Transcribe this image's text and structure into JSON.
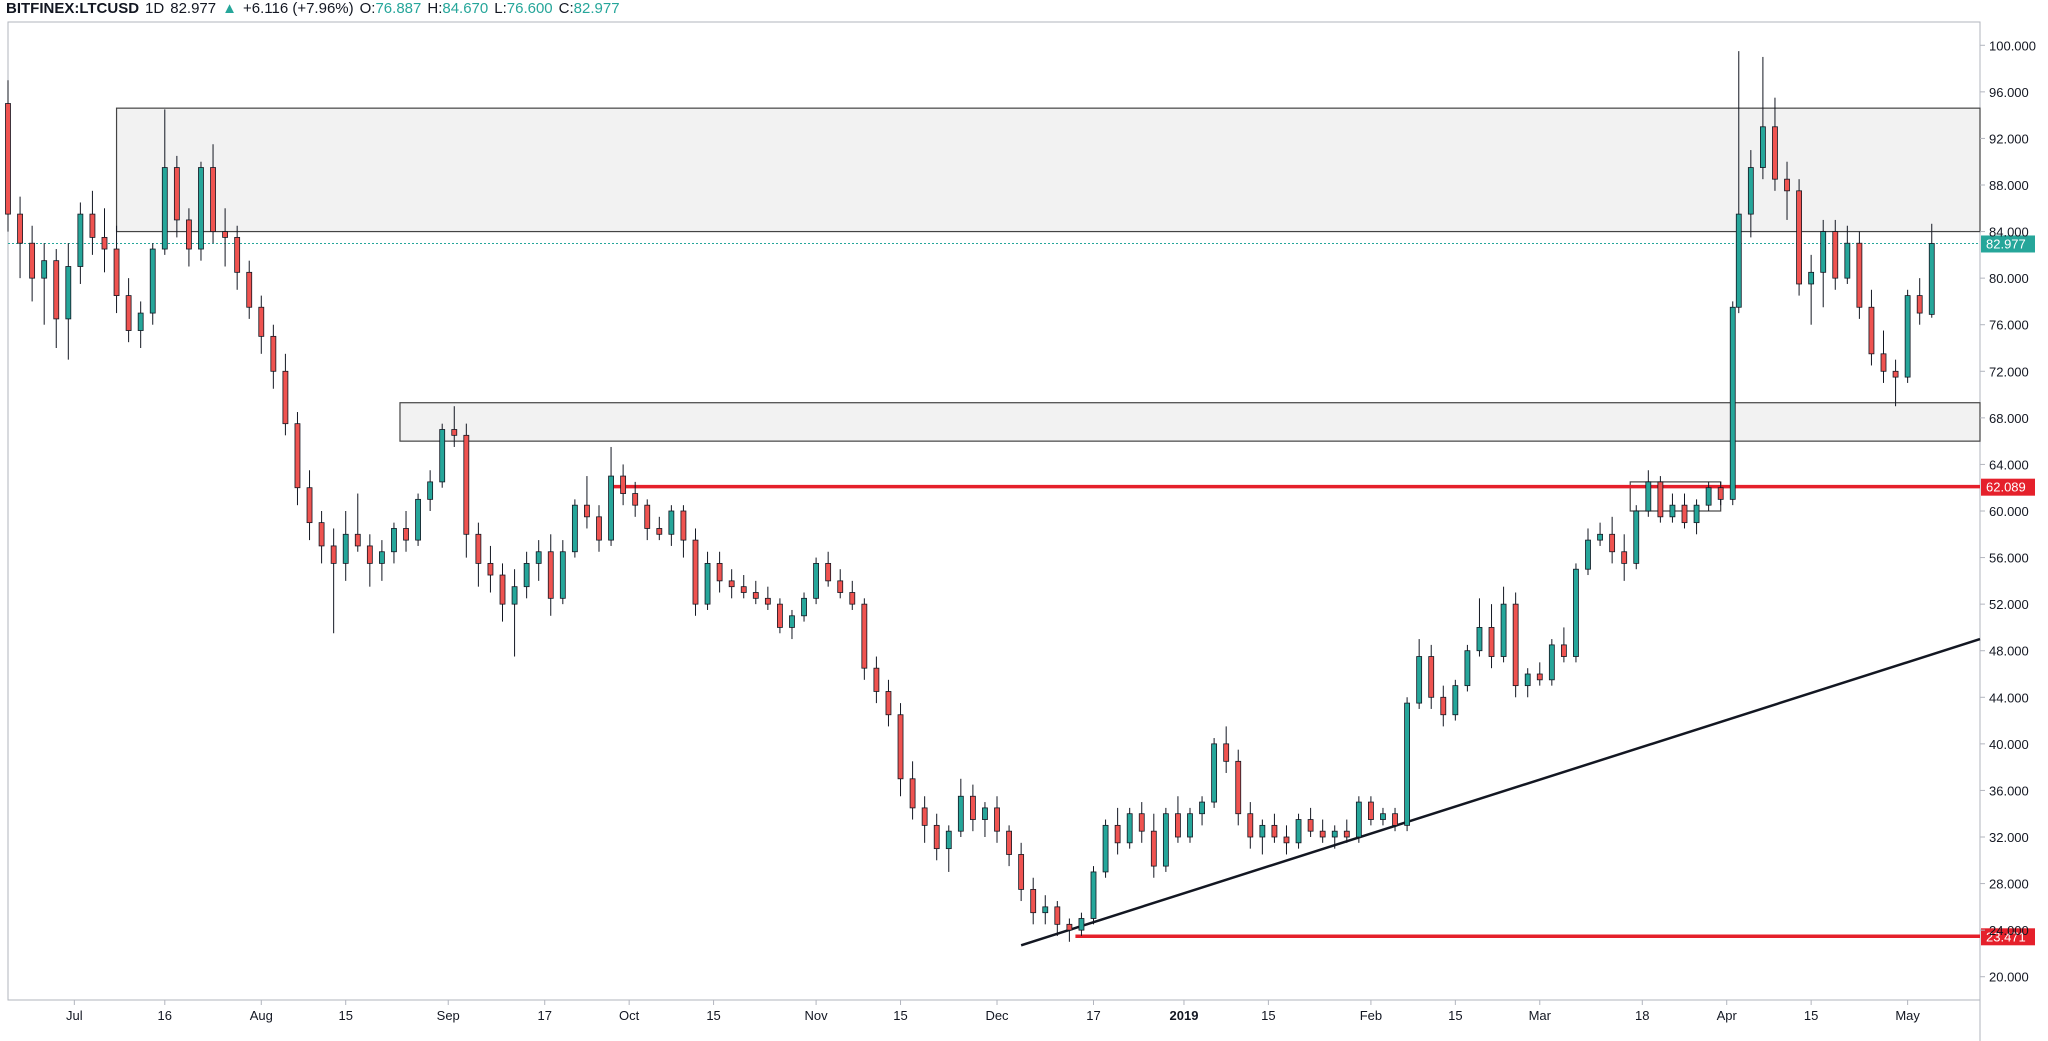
{
  "header": {
    "symbol": "BITFINEX:LTCUSD",
    "interval": "1D",
    "last": "82.977",
    "change_arrow": "▲",
    "change": "+6.116 (+7.96%)",
    "o_label": "O:",
    "o_value": "76.887",
    "h_label": "H:",
    "h_value": "84.670",
    "l_label": "L:",
    "l_value": "76.600",
    "c_label": "C:",
    "c_value": "82.977"
  },
  "colors": {
    "up": "#26a69a",
    "down": "#ef5350",
    "wick": "#131722",
    "resistance": "#e5202b",
    "trendline": "#131722",
    "zone_fill": "#f2f2f2",
    "last_price": "#26a69a"
  },
  "chart_data": {
    "type": "candlestick",
    "ylim": [
      18,
      102
    ],
    "y_ticks": [
      "20.000",
      "24.000",
      "28.000",
      "32.000",
      "36.000",
      "40.000",
      "44.000",
      "48.000",
      "52.000",
      "56.000",
      "60.000",
      "64.000",
      "68.000",
      "72.000",
      "76.000",
      "80.000",
      "84.000",
      "88.000",
      "92.000",
      "96.000",
      "100.000"
    ],
    "x_ticks": [
      "Jul",
      "16",
      "Aug",
      "15",
      "Sep",
      "17",
      "Oct",
      "15",
      "Nov",
      "15",
      "Dec",
      "17",
      "2019",
      "15",
      "Feb",
      "15",
      "Mar",
      "18",
      "Apr",
      "15",
      "May"
    ],
    "x_tick_dates": [
      "2018-07-01",
      "2018-07-16",
      "2018-08-01",
      "2018-08-15",
      "2018-09-01",
      "2018-09-17",
      "2018-10-01",
      "2018-10-15",
      "2018-11-01",
      "2018-11-15",
      "2018-12-01",
      "2018-12-17",
      "2019-01-01",
      "2019-01-15",
      "2019-02-01",
      "2019-02-15",
      "2019-03-01",
      "2019-03-18",
      "2019-04-01",
      "2019-04-15",
      "2019-05-01"
    ],
    "x_range": [
      "2018-06-20",
      "2019-05-13"
    ],
    "grid": false,
    "last_price": 82.977,
    "levels": [
      {
        "label": "62.089",
        "value": 62.089,
        "from": "2018-09-28"
      },
      {
        "label": "23.471",
        "value": 23.471,
        "from": "2018-12-14"
      }
    ],
    "zones": [
      {
        "from": "2018-07-08",
        "to": "2019-05-13",
        "low": 84.0,
        "high": 94.6
      },
      {
        "from": "2018-08-24",
        "to": "2019-05-13",
        "low": 66.0,
        "high": 69.3
      },
      {
        "from": "2019-03-16",
        "to": "2019-03-31",
        "low": 60.0,
        "high": 62.5
      }
    ],
    "trendline": {
      "from": [
        "2018-12-05",
        22.7
      ],
      "to": [
        "2019-05-13",
        49.0
      ]
    },
    "ohlc": [
      [
        "2018-06-20",
        95.0,
        97.0,
        84.0,
        85.5
      ],
      [
        "2018-06-22",
        85.5,
        87.0,
        80.0,
        83.0
      ],
      [
        "2018-06-24",
        83.0,
        84.5,
        78.0,
        80.0
      ],
      [
        "2018-06-26",
        80.0,
        83.0,
        76.0,
        81.5
      ],
      [
        "2018-06-28",
        81.5,
        82.5,
        74.0,
        76.5
      ],
      [
        "2018-06-30",
        76.5,
        83.0,
        73.0,
        81.0
      ],
      [
        "2018-07-02",
        81.0,
        86.5,
        79.5,
        85.5
      ],
      [
        "2018-07-04",
        85.5,
        87.5,
        82.0,
        83.5
      ],
      [
        "2018-07-06",
        83.5,
        86.0,
        80.5,
        82.5
      ],
      [
        "2018-07-08",
        82.5,
        84.5,
        77.0,
        78.5
      ],
      [
        "2018-07-10",
        78.5,
        80.0,
        74.5,
        75.5
      ],
      [
        "2018-07-12",
        75.5,
        78.0,
        74.0,
        77.0
      ],
      [
        "2018-07-14",
        77.0,
        83.0,
        76.0,
        82.5
      ],
      [
        "2018-07-16",
        82.5,
        94.5,
        82.0,
        89.5
      ],
      [
        "2018-07-18",
        89.5,
        90.5,
        83.5,
        85.0
      ],
      [
        "2018-07-20",
        85.0,
        86.0,
        81.0,
        82.5
      ],
      [
        "2018-07-22",
        82.5,
        90.0,
        81.5,
        89.5
      ],
      [
        "2018-07-24",
        89.5,
        91.5,
        83.0,
        84.0
      ],
      [
        "2018-07-26",
        84.0,
        86.0,
        81.0,
        83.5
      ],
      [
        "2018-07-28",
        83.5,
        84.5,
        79.0,
        80.5
      ],
      [
        "2018-07-30",
        80.5,
        81.5,
        76.5,
        77.5
      ],
      [
        "2018-08-01",
        77.5,
        78.5,
        73.5,
        75.0
      ],
      [
        "2018-08-03",
        75.0,
        76.0,
        70.5,
        72.0
      ],
      [
        "2018-08-05",
        72.0,
        73.5,
        66.5,
        67.5
      ],
      [
        "2018-08-07",
        67.5,
        68.5,
        60.5,
        62.0
      ],
      [
        "2018-08-09",
        62.0,
        63.5,
        57.5,
        59.0
      ],
      [
        "2018-08-11",
        59.0,
        60.0,
        55.5,
        57.0
      ],
      [
        "2018-08-13",
        57.0,
        58.5,
        49.5,
        55.5
      ],
      [
        "2018-08-15",
        55.5,
        60.0,
        54.0,
        58.0
      ],
      [
        "2018-08-17",
        58.0,
        61.5,
        56.5,
        57.0
      ],
      [
        "2018-08-19",
        57.0,
        58.0,
        53.5,
        55.5
      ],
      [
        "2018-08-21",
        55.5,
        57.5,
        54.0,
        56.5
      ],
      [
        "2018-08-23",
        56.5,
        59.0,
        55.5,
        58.5
      ],
      [
        "2018-08-25",
        58.5,
        60.0,
        56.5,
        57.5
      ],
      [
        "2018-08-27",
        57.5,
        61.5,
        57.0,
        61.0
      ],
      [
        "2018-08-29",
        61.0,
        63.5,
        60.0,
        62.5
      ],
      [
        "2018-08-31",
        62.5,
        67.5,
        62.0,
        67.0
      ],
      [
        "2018-09-02",
        67.0,
        69.0,
        65.5,
        66.5
      ],
      [
        "2018-09-04",
        66.5,
        67.5,
        56.0,
        58.0
      ],
      [
        "2018-09-06",
        58.0,
        59.0,
        53.5,
        55.5
      ],
      [
        "2018-09-08",
        55.5,
        57.0,
        53.0,
        54.5
      ],
      [
        "2018-09-10",
        54.5,
        55.5,
        50.5,
        52.0
      ],
      [
        "2018-09-12",
        52.0,
        55.0,
        47.5,
        53.5
      ],
      [
        "2018-09-14",
        53.5,
        56.5,
        52.5,
        55.5
      ],
      [
        "2018-09-16",
        55.5,
        57.5,
        54.0,
        56.5
      ],
      [
        "2018-09-18",
        56.5,
        58.0,
        51.0,
        52.5
      ],
      [
        "2018-09-20",
        52.5,
        57.5,
        52.0,
        56.5
      ],
      [
        "2018-09-22",
        56.5,
        61.0,
        56.0,
        60.5
      ],
      [
        "2018-09-24",
        60.5,
        63.0,
        58.5,
        59.5
      ],
      [
        "2018-09-26",
        59.5,
        60.5,
        56.5,
        57.5
      ],
      [
        "2018-09-28",
        57.5,
        65.5,
        57.0,
        63.0
      ],
      [
        "2018-09-30",
        63.0,
        64.0,
        60.5,
        61.5
      ],
      [
        "2018-10-02",
        61.5,
        62.5,
        59.5,
        60.5
      ],
      [
        "2018-10-04",
        60.5,
        61.0,
        57.5,
        58.5
      ],
      [
        "2018-10-06",
        58.5,
        59.5,
        57.5,
        58.0
      ],
      [
        "2018-10-08",
        58.0,
        60.5,
        57.0,
        60.0
      ],
      [
        "2018-10-10",
        60.0,
        60.5,
        56.0,
        57.5
      ],
      [
        "2018-10-12",
        57.5,
        58.5,
        51.0,
        52.0
      ],
      [
        "2018-10-14",
        52.0,
        56.5,
        51.5,
        55.5
      ],
      [
        "2018-10-16",
        55.5,
        56.5,
        53.0,
        54.0
      ],
      [
        "2018-10-18",
        54.0,
        55.0,
        52.5,
        53.5
      ],
      [
        "2018-10-20",
        53.5,
        54.5,
        52.5,
        53.0
      ],
      [
        "2018-10-22",
        53.0,
        54.0,
        52.0,
        52.5
      ],
      [
        "2018-10-24",
        52.5,
        53.5,
        51.5,
        52.0
      ],
      [
        "2018-10-26",
        52.0,
        52.5,
        49.5,
        50.0
      ],
      [
        "2018-10-28",
        50.0,
        51.5,
        49.0,
        51.0
      ],
      [
        "2018-10-30",
        51.0,
        53.0,
        50.5,
        52.5
      ],
      [
        "2018-11-01",
        52.5,
        56.0,
        52.0,
        55.5
      ],
      [
        "2018-11-03",
        55.5,
        56.5,
        53.5,
        54.0
      ],
      [
        "2018-11-05",
        54.0,
        55.0,
        52.5,
        53.0
      ],
      [
        "2018-11-07",
        53.0,
        54.0,
        51.5,
        52.0
      ],
      [
        "2018-11-09",
        52.0,
        52.5,
        45.5,
        46.5
      ],
      [
        "2018-11-11",
        46.5,
        47.5,
        43.5,
        44.5
      ],
      [
        "2018-11-13",
        44.5,
        45.5,
        41.5,
        42.5
      ],
      [
        "2018-11-15",
        42.5,
        43.5,
        35.5,
        37.0
      ],
      [
        "2018-11-17",
        37.0,
        38.5,
        33.5,
        34.5
      ],
      [
        "2018-11-19",
        34.5,
        35.5,
        31.5,
        33.0
      ],
      [
        "2018-11-21",
        33.0,
        34.0,
        30.0,
        31.0
      ],
      [
        "2018-11-23",
        31.0,
        33.0,
        29.0,
        32.5
      ],
      [
        "2018-11-25",
        32.5,
        37.0,
        32.0,
        35.5
      ],
      [
        "2018-11-27",
        35.5,
        36.5,
        32.5,
        33.5
      ],
      [
        "2018-11-29",
        33.5,
        35.0,
        32.0,
        34.5
      ],
      [
        "2018-12-01",
        34.5,
        35.5,
        31.5,
        32.5
      ],
      [
        "2018-12-03",
        32.5,
        33.0,
        29.5,
        30.5
      ],
      [
        "2018-12-05",
        30.5,
        31.5,
        26.5,
        27.5
      ],
      [
        "2018-12-07",
        27.5,
        28.5,
        24.5,
        25.5
      ],
      [
        "2018-12-09",
        25.5,
        27.0,
        24.5,
        26.0
      ],
      [
        "2018-12-11",
        26.0,
        26.5,
        23.5,
        24.5
      ],
      [
        "2018-12-13",
        24.5,
        25.0,
        23.0,
        24.0
      ],
      [
        "2018-12-15",
        24.0,
        25.5,
        23.5,
        25.0
      ],
      [
        "2018-12-17",
        25.0,
        29.5,
        24.5,
        29.0
      ],
      [
        "2018-12-19",
        29.0,
        33.5,
        28.5,
        33.0
      ],
      [
        "2018-12-21",
        33.0,
        34.5,
        30.5,
        31.5
      ],
      [
        "2018-12-23",
        31.5,
        34.5,
        31.0,
        34.0
      ],
      [
        "2018-12-25",
        34.0,
        35.0,
        31.5,
        32.5
      ],
      [
        "2018-12-27",
        32.5,
        34.0,
        28.5,
        29.5
      ],
      [
        "2018-12-29",
        29.5,
        34.5,
        29.0,
        34.0
      ],
      [
        "2018-12-31",
        34.0,
        35.5,
        31.5,
        32.0
      ],
      [
        "2019-01-02",
        32.0,
        34.5,
        31.5,
        34.0
      ],
      [
        "2019-01-04",
        34.0,
        35.5,
        33.0,
        35.0
      ],
      [
        "2019-01-06",
        35.0,
        40.5,
        34.5,
        40.0
      ],
      [
        "2019-01-08",
        40.0,
        41.5,
        37.5,
        38.5
      ],
      [
        "2019-01-10",
        38.5,
        39.5,
        33.0,
        34.0
      ],
      [
        "2019-01-12",
        34.0,
        35.0,
        31.0,
        32.0
      ],
      [
        "2019-01-14",
        32.0,
        33.5,
        30.5,
        33.0
      ],
      [
        "2019-01-16",
        33.0,
        34.0,
        31.5,
        32.0
      ],
      [
        "2019-01-18",
        32.0,
        33.0,
        30.5,
        31.5
      ],
      [
        "2019-01-20",
        31.5,
        34.0,
        31.0,
        33.5
      ],
      [
        "2019-01-22",
        33.5,
        34.5,
        32.0,
        32.5
      ],
      [
        "2019-01-24",
        32.5,
        33.5,
        31.5,
        32.0
      ],
      [
        "2019-01-26",
        32.0,
        33.0,
        31.0,
        32.5
      ],
      [
        "2019-01-28",
        32.5,
        33.5,
        31.5,
        32.0
      ],
      [
        "2019-01-30",
        32.0,
        35.5,
        31.5,
        35.0
      ],
      [
        "2019-02-01",
        35.0,
        35.5,
        33.0,
        33.5
      ],
      [
        "2019-02-03",
        33.5,
        34.5,
        33.0,
        34.0
      ],
      [
        "2019-02-05",
        34.0,
        34.5,
        32.5,
        33.0
      ],
      [
        "2019-02-07",
        33.0,
        44.0,
        32.5,
        43.5
      ],
      [
        "2019-02-09",
        43.5,
        49.0,
        43.0,
        47.5
      ],
      [
        "2019-02-11",
        47.5,
        48.5,
        43.0,
        44.0
      ],
      [
        "2019-02-13",
        44.0,
        45.0,
        41.5,
        42.5
      ],
      [
        "2019-02-15",
        42.5,
        45.5,
        42.0,
        45.0
      ],
      [
        "2019-02-17",
        45.0,
        48.5,
        44.5,
        48.0
      ],
      [
        "2019-02-19",
        48.0,
        52.5,
        47.5,
        50.0
      ],
      [
        "2019-02-21",
        50.0,
        52.0,
        46.5,
        47.5
      ],
      [
        "2019-02-23",
        47.5,
        53.5,
        47.0,
        52.0
      ],
      [
        "2019-02-25",
        52.0,
        53.0,
        44.0,
        45.0
      ],
      [
        "2019-02-27",
        45.0,
        46.5,
        44.0,
        46.0
      ],
      [
        "2019-03-01",
        46.0,
        47.0,
        45.0,
        45.5
      ],
      [
        "2019-03-03",
        45.5,
        49.0,
        45.0,
        48.5
      ],
      [
        "2019-03-05",
        48.5,
        50.0,
        47.0,
        47.5
      ],
      [
        "2019-03-07",
        47.5,
        55.5,
        47.0,
        55.0
      ],
      [
        "2019-03-09",
        55.0,
        58.5,
        54.5,
        57.5
      ],
      [
        "2019-03-11",
        57.5,
        59.0,
        57.0,
        58.0
      ],
      [
        "2019-03-13",
        58.0,
        59.5,
        55.5,
        56.5
      ],
      [
        "2019-03-15",
        56.5,
        58.0,
        54.0,
        55.5
      ],
      [
        "2019-03-17",
        55.5,
        60.5,
        55.0,
        60.0
      ],
      [
        "2019-03-19",
        60.0,
        63.5,
        59.5,
        62.5
      ],
      [
        "2019-03-21",
        62.5,
        63.0,
        59.0,
        59.5
      ],
      [
        "2019-03-23",
        59.5,
        61.5,
        59.0,
        60.5
      ],
      [
        "2019-03-25",
        60.5,
        61.5,
        58.5,
        59.0
      ],
      [
        "2019-03-27",
        59.0,
        61.0,
        58.0,
        60.5
      ],
      [
        "2019-03-29",
        60.5,
        62.5,
        60.0,
        62.0
      ],
      [
        "2019-03-31",
        62.0,
        62.5,
        60.5,
        61.0
      ],
      [
        "2019-04-02",
        61.0,
        78.0,
        60.5,
        77.5
      ],
      [
        "2019-04-03",
        77.5,
        99.5,
        77.0,
        85.5
      ],
      [
        "2019-04-05",
        85.5,
        91.0,
        83.5,
        89.5
      ],
      [
        "2019-04-07",
        89.5,
        99.0,
        88.5,
        93.0
      ],
      [
        "2019-04-09",
        93.0,
        95.5,
        87.5,
        88.5
      ],
      [
        "2019-04-11",
        88.5,
        90.0,
        85.0,
        87.5
      ],
      [
        "2019-04-13",
        87.5,
        88.5,
        78.5,
        79.5
      ],
      [
        "2019-04-15",
        79.5,
        82.0,
        76.0,
        80.5
      ],
      [
        "2019-04-17",
        80.5,
        85.0,
        77.5,
        84.0
      ],
      [
        "2019-04-19",
        84.0,
        85.0,
        79.0,
        80.0
      ],
      [
        "2019-04-21",
        80.0,
        84.5,
        79.5,
        83.0
      ],
      [
        "2019-04-23",
        83.0,
        84.0,
        76.5,
        77.5
      ],
      [
        "2019-04-25",
        77.5,
        79.0,
        72.5,
        73.5
      ],
      [
        "2019-04-27",
        73.5,
        75.5,
        71.0,
        72.0
      ],
      [
        "2019-04-29",
        72.0,
        73.0,
        69.0,
        71.5
      ],
      [
        "2019-05-01",
        71.5,
        79.0,
        71.0,
        78.5
      ],
      [
        "2019-05-03",
        78.5,
        80.0,
        76.0,
        77.0
      ],
      [
        "2019-05-05",
        76.887,
        84.67,
        76.6,
        82.977
      ]
    ]
  }
}
